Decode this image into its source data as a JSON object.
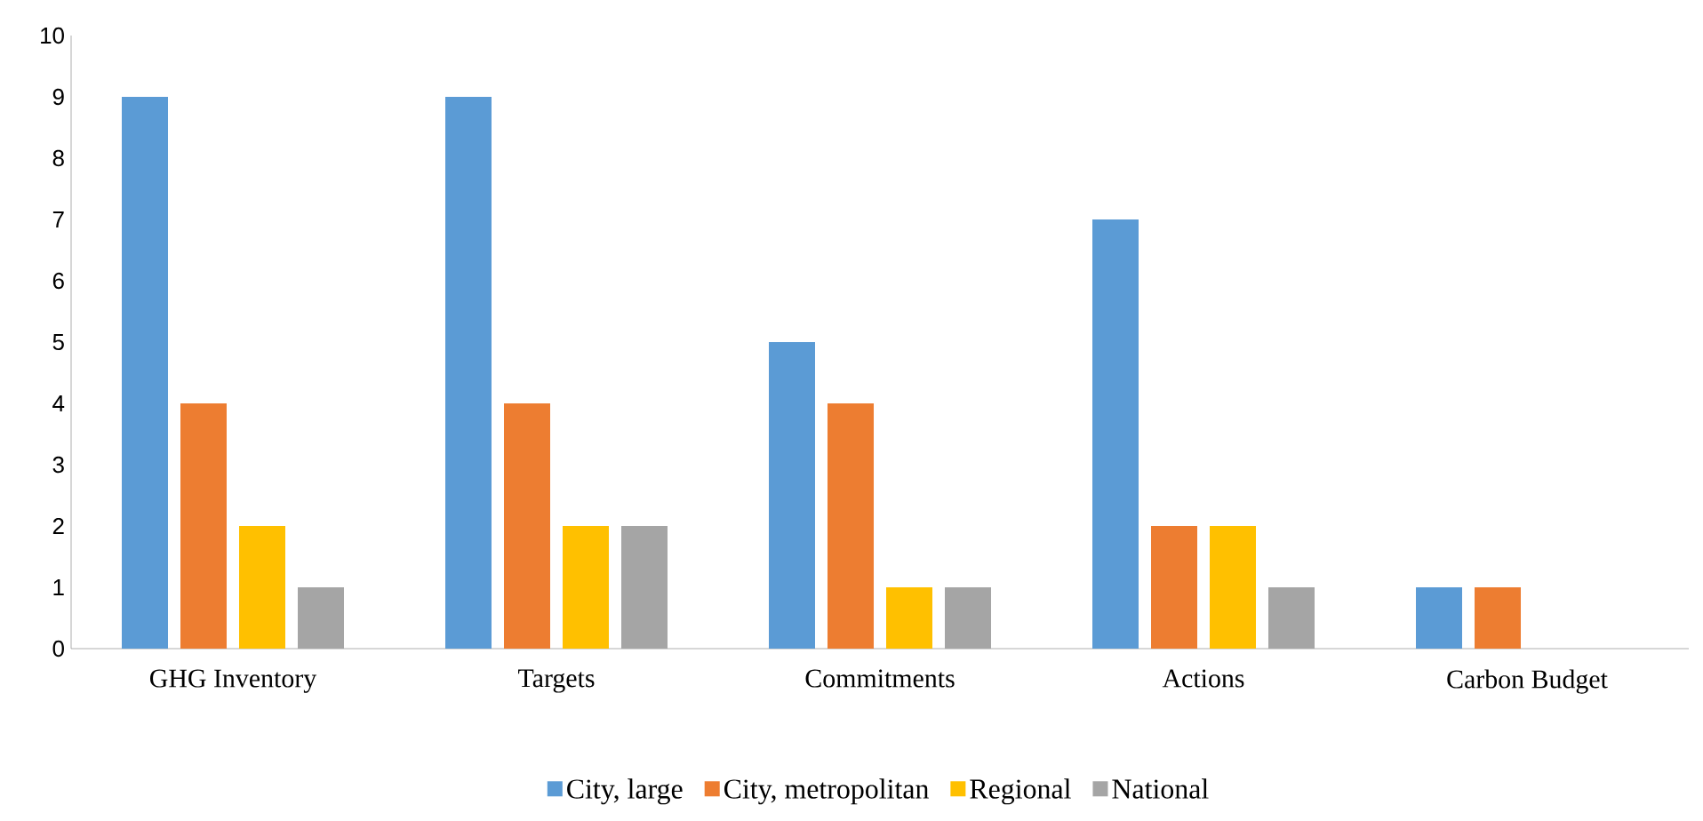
{
  "chart_data": {
    "type": "bar",
    "categories": [
      "GHG Inventory",
      "Targets",
      "Commitments",
      "Actions",
      "Carbon Budget"
    ],
    "series": [
      {
        "name": "City, large",
        "color": "#5b9bd5",
        "values": [
          9,
          9,
          5,
          7,
          1
        ]
      },
      {
        "name": "City, metropolitan",
        "color": "#ed7d31",
        "values": [
          4,
          4,
          4,
          2,
          1
        ]
      },
      {
        "name": "Regional",
        "color": "#ffc000",
        "values": [
          2,
          2,
          1,
          2,
          0
        ]
      },
      {
        "name": "National",
        "color": "#a5a5a5",
        "values": [
          1,
          2,
          1,
          1,
          0
        ]
      }
    ],
    "ylim": [
      0,
      10
    ],
    "yticks": [
      0,
      1,
      2,
      3,
      4,
      5,
      6,
      7,
      8,
      9,
      10
    ],
    "grid": false,
    "legend": "bottom"
  }
}
